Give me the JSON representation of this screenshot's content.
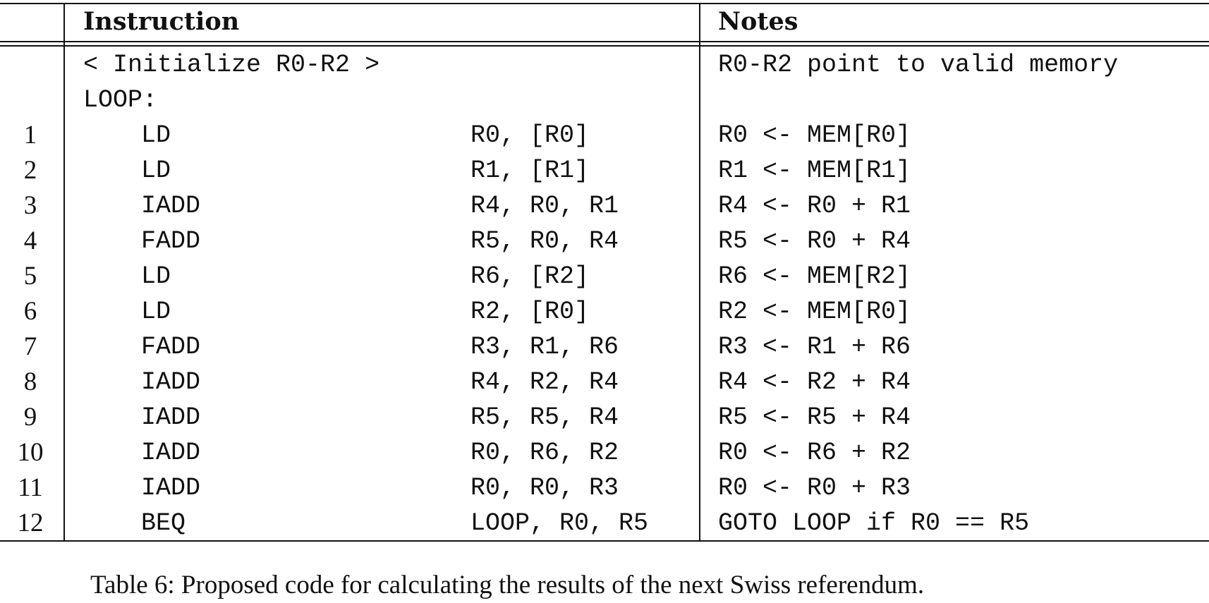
{
  "table": {
    "headers": {
      "instruction": "Instruction",
      "notes": "Notes"
    },
    "init_row": {
      "instruction": "< Initialize R0-R2 >",
      "note": "R0-R2 point to valid memory"
    },
    "label_row": {
      "instruction": "LOOP:"
    },
    "rows": [
      {
        "num": "1",
        "op": "LD",
        "args": "R0, [R0]",
        "note": "R0 <- MEM[R0]"
      },
      {
        "num": "2",
        "op": "LD",
        "args": "R1, [R1]",
        "note": "R1 <- MEM[R1]"
      },
      {
        "num": "3",
        "op": "IADD",
        "args": "R4, R0, R1",
        "note": "R4 <- R0 + R1"
      },
      {
        "num": "4",
        "op": "FADD",
        "args": "R5, R0, R4",
        "note": "R5 <- R0 + R4"
      },
      {
        "num": "5",
        "op": "LD",
        "args": "R6, [R2]",
        "note": "R6 <- MEM[R2]"
      },
      {
        "num": "6",
        "op": "LD",
        "args": "R2, [R0]",
        "note": "R2 <- MEM[R0]"
      },
      {
        "num": "7",
        "op": "FADD",
        "args": "R3, R1, R6",
        "note": "R3 <- R1 + R6"
      },
      {
        "num": "8",
        "op": "IADD",
        "args": "R4, R2, R4",
        "note": "R4 <- R2 + R4"
      },
      {
        "num": "9",
        "op": "IADD",
        "args": "R5, R5, R4",
        "note": "R5 <- R5 + R4"
      },
      {
        "num": "10",
        "op": "IADD",
        "args": "R0, R6, R2",
        "note": "R0 <- R6 + R2"
      },
      {
        "num": "11",
        "op": "IADD",
        "args": "R0, R0, R3",
        "note": "R0 <- R0 + R3"
      },
      {
        "num": "12",
        "op": "BEQ",
        "args": "LOOP, R0, R5",
        "note": "GOTO LOOP if R0 == R5"
      }
    ]
  },
  "caption": "Table 6: Proposed code for calculating the results of the next Swiss referendum."
}
